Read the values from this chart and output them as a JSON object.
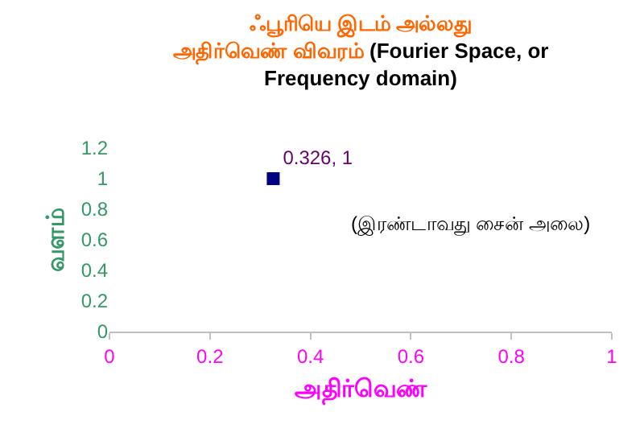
{
  "chart_data": {
    "type": "scatter",
    "title": "ஃபூரியெ இடம் அல்லது அதிர்வெண் விவரம் (Fourier Space, or Frequency domain)",
    "xlabel": "அதிர்வெண்",
    "ylabel": "வளம்",
    "annotations": [
      "(இரண்டாவது சைன் அலை)"
    ],
    "x": [
      0.326
    ],
    "series": [
      {
        "color": "#000080",
        "values": [
          1
        ],
        "value_labels": [
          "0.326, 1"
        ]
      }
    ],
    "xlim": [
      0,
      1
    ],
    "xticks": [
      0,
      0.2,
      0.4,
      0.6,
      0.8,
      1
    ],
    "ylim": [
      0,
      1.2
    ],
    "yticks": [
      0,
      0.2,
      0.4,
      0.6,
      0.8,
      1,
      1.2
    ],
    "grid": false,
    "marker": "square"
  }
}
